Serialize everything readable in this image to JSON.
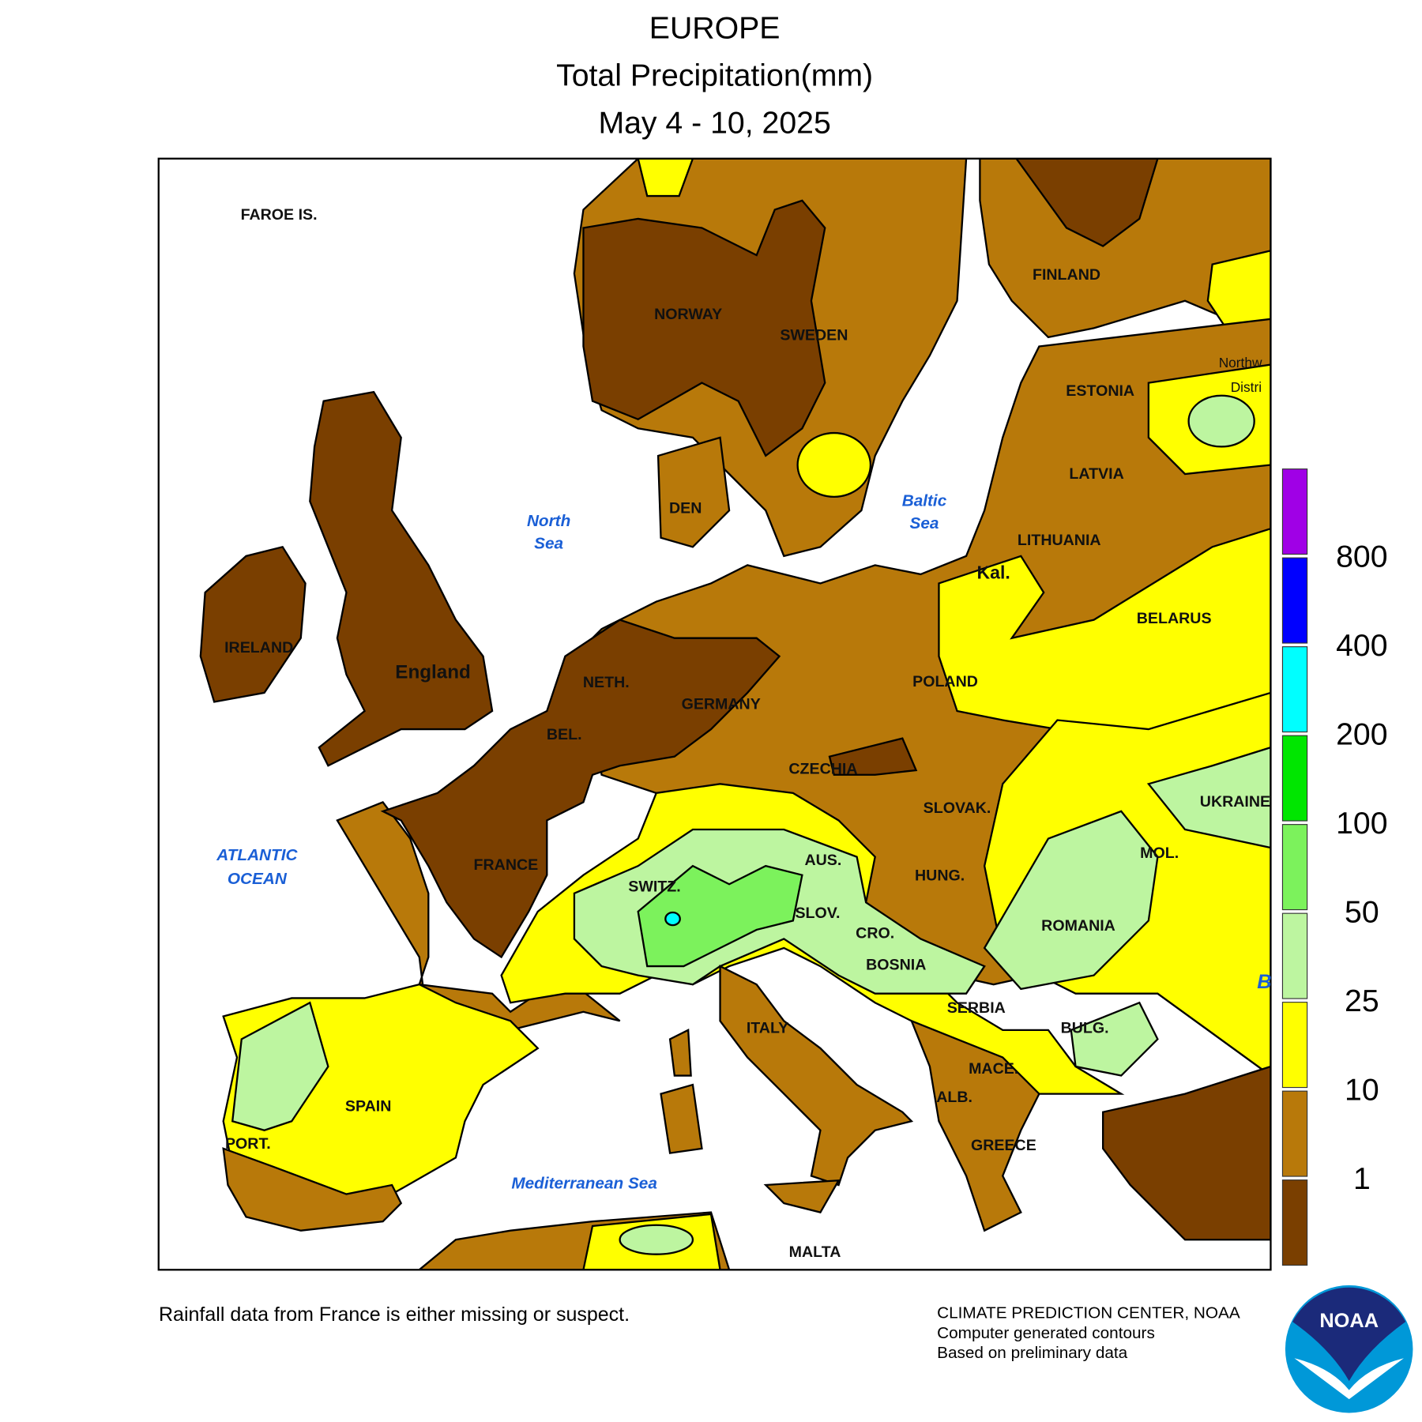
{
  "header": {
    "title": "EUROPE",
    "subtitle": "Total Precipitation(mm)",
    "period": "May 4 - 10, 2025"
  },
  "map": {
    "labels": [
      "FAROE IS.",
      "NORWAY",
      "SWEDEN",
      "FINLAND",
      "ESTONIA",
      "LATVIA",
      "LITHUANIA",
      "Kal.",
      "BELARUS",
      "POLAND",
      "GERMANY",
      "NETH.",
      "BEL.",
      "DEN",
      "IRELAND",
      "England",
      "FRANCE",
      "SWITZ.",
      "AUS.",
      "CZECHIA",
      "SLOVAK.",
      "HUNG.",
      "SLOV.",
      "CRO.",
      "BOSNIA",
      "SERBIA",
      "ROMANIA",
      "MOL.",
      "UKRAINE",
      "BULG.",
      "MACE.",
      "ALB.",
      "GREECE",
      "ITALY",
      "SPAIN",
      "PORT.",
      "MALTA",
      "Northw",
      "Distri"
    ],
    "seas": [
      [
        "North",
        "Sea"
      ],
      [
        "Baltic",
        "Sea"
      ],
      [
        "ATLANTIC",
        "OCEAN"
      ],
      [
        "Mediterranean Sea"
      ],
      [
        "B"
      ]
    ]
  },
  "legend": {
    "colors": [
      "#7a3f00",
      "#b8790a",
      "#ffff00",
      "#bdf5a0",
      "#7cf25c",
      "#00e600",
      "#00ffff",
      "#0000ff",
      "#a000e6"
    ],
    "ticks": [
      1,
      10,
      25,
      50,
      100,
      200,
      400,
      800
    ]
  },
  "footer": {
    "note": "Rainfall data from France is either missing or suspect.",
    "credits": [
      "CLIMATE PREDICTION CENTER, NOAA",
      "Computer generated contours",
      "Based on preliminary data"
    ],
    "logo": "NOAA"
  }
}
